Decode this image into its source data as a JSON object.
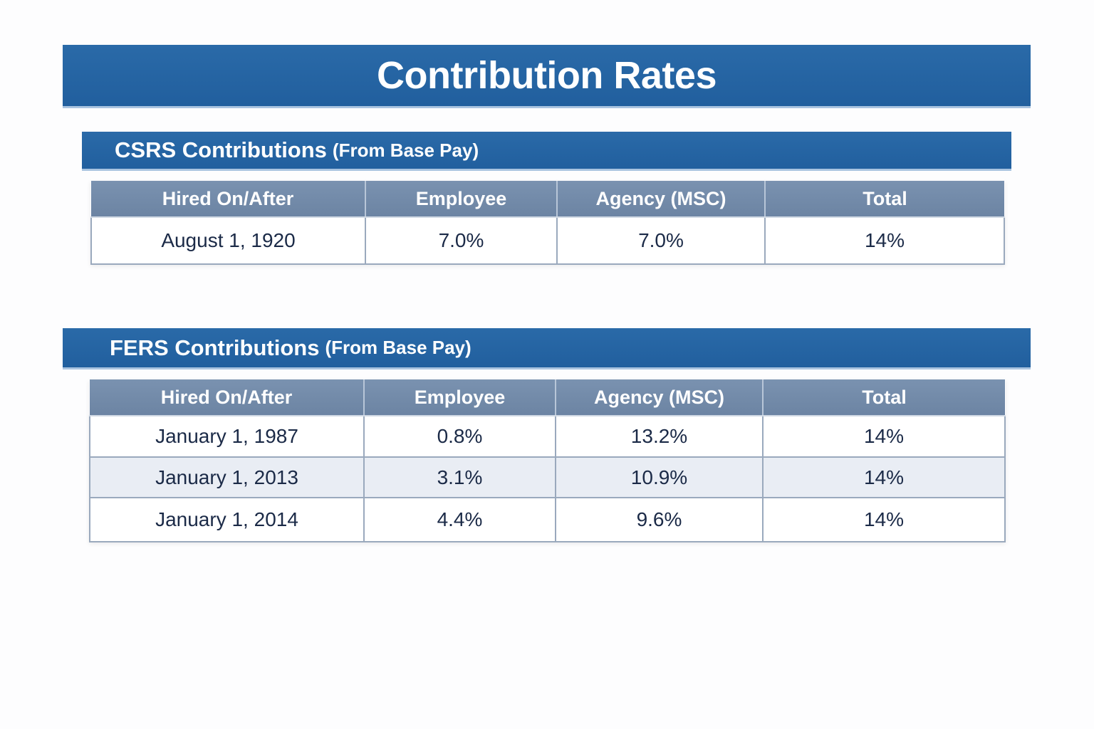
{
  "title": "Contribution Rates",
  "csrs": {
    "heading": "CSRS Contributions",
    "subheading": "(From Base Pay)",
    "columns": [
      "Hired On/After",
      "Employee",
      "Agency (MSC)",
      "Total"
    ],
    "rows": [
      [
        "August 1, 1920",
        "7.0%",
        "7.0%",
        "14%"
      ]
    ]
  },
  "fers": {
    "heading": "FERS Contributions",
    "subheading": "(From Base Pay)",
    "columns": [
      "Hired On/After",
      "Employee",
      "Agency (MSC)",
      "Total"
    ],
    "rows": [
      [
        "January 1, 1987",
        "0.8%",
        "13.2%",
        "14%"
      ],
      [
        "January 1, 2013",
        "3.1%",
        "10.9%",
        "14%"
      ],
      [
        "January 1, 2014",
        "4.4%",
        "9.6%",
        "14%"
      ]
    ]
  },
  "colors": {
    "banner": "#2363a0",
    "table_header": "#7189a8",
    "row_alt": "#e9edf4",
    "text": "#1b2a47"
  }
}
